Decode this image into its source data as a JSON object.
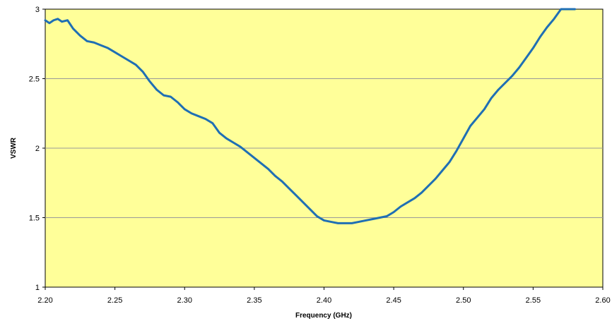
{
  "chart_data": {
    "type": "line",
    "title": "",
    "xlabel": "Frequency (GHz)",
    "ylabel": "VSWR",
    "xlim": [
      2.2,
      2.6
    ],
    "ylim": [
      1,
      3
    ],
    "x_ticks": [
      "2.20",
      "2.25",
      "2.30",
      "2.35",
      "2.40",
      "2.45",
      "2.50",
      "2.55",
      "2.60"
    ],
    "y_ticks": [
      "1",
      "1.5",
      "2",
      "2.5",
      "3"
    ],
    "grid": "horizontal",
    "legend": "none",
    "colors": {
      "plot_background": "#FFFF99",
      "line": "#1F6FB4",
      "gridline": "#999999",
      "frame": "#000000"
    },
    "series": [
      {
        "x": [
          2.2,
          2.203,
          2.206,
          2.209,
          2.212,
          2.216,
          2.22,
          2.225,
          2.23,
          2.235,
          2.24,
          2.245,
          2.25,
          2.255,
          2.26,
          2.265,
          2.27,
          2.275,
          2.28,
          2.285,
          2.29,
          2.295,
          2.3,
          2.305,
          2.31,
          2.315,
          2.32,
          2.325,
          2.33,
          2.335,
          2.34,
          2.345,
          2.35,
          2.355,
          2.36,
          2.365,
          2.37,
          2.375,
          2.38,
          2.385,
          2.39,
          2.395,
          2.4,
          2.405,
          2.41,
          2.415,
          2.42,
          2.425,
          2.43,
          2.435,
          2.44,
          2.445,
          2.45,
          2.455,
          2.46,
          2.465,
          2.47,
          2.475,
          2.48,
          2.485,
          2.49,
          2.495,
          2.5,
          2.505,
          2.51,
          2.515,
          2.52,
          2.525,
          2.53,
          2.535,
          2.54,
          2.545,
          2.55,
          2.555,
          2.56,
          2.565,
          2.57,
          2.575,
          2.58
        ],
        "values": [
          2.92,
          2.9,
          2.92,
          2.93,
          2.91,
          2.92,
          2.86,
          2.81,
          2.77,
          2.76,
          2.74,
          2.72,
          2.69,
          2.66,
          2.63,
          2.6,
          2.55,
          2.48,
          2.42,
          2.38,
          2.37,
          2.33,
          2.28,
          2.25,
          2.23,
          2.21,
          2.18,
          2.11,
          2.07,
          2.04,
          2.01,
          1.97,
          1.93,
          1.89,
          1.85,
          1.8,
          1.76,
          1.71,
          1.66,
          1.61,
          1.56,
          1.51,
          1.48,
          1.47,
          1.46,
          1.46,
          1.46,
          1.47,
          1.48,
          1.49,
          1.5,
          1.51,
          1.54,
          1.58,
          1.61,
          1.64,
          1.68,
          1.73,
          1.78,
          1.84,
          1.9,
          1.98,
          2.07,
          2.16,
          2.22,
          2.28,
          2.36,
          2.42,
          2.47,
          2.52,
          2.58,
          2.65,
          2.72,
          2.8,
          2.87,
          2.93,
          3.0,
          3.0,
          3.0
        ]
      }
    ]
  }
}
